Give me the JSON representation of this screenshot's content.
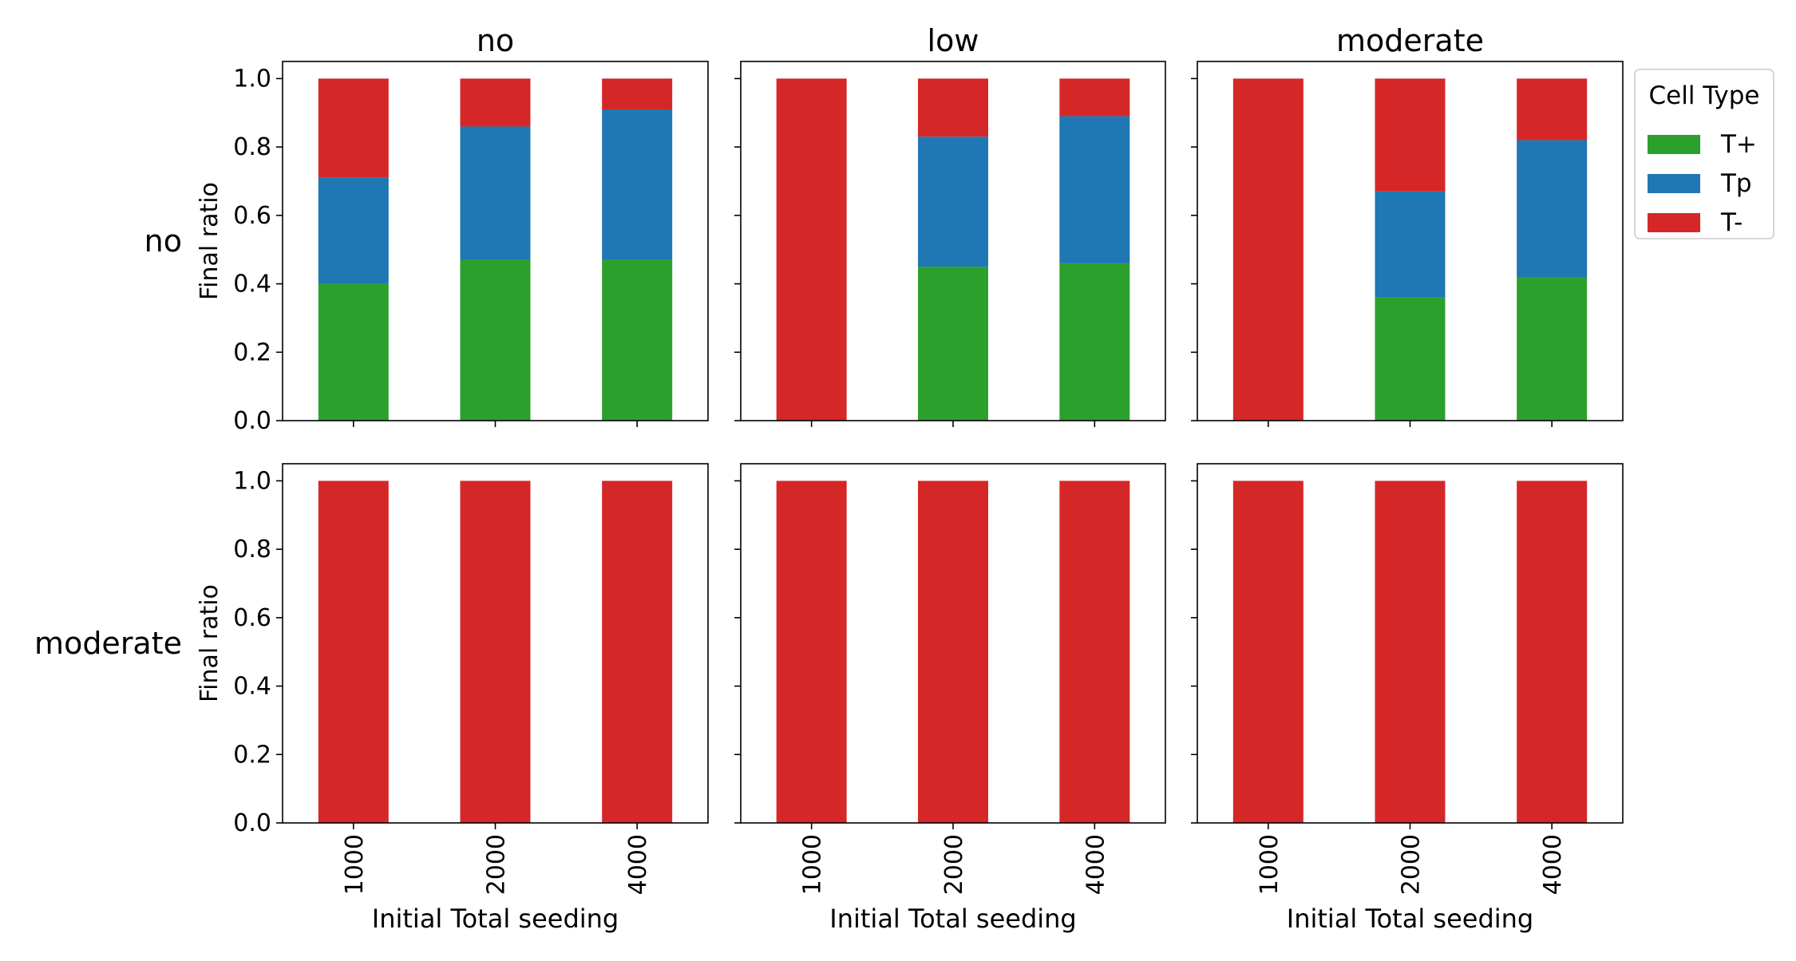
{
  "chart_data": {
    "type": "bar",
    "stacked": true,
    "column_titles": [
      "no",
      "low",
      "moderate"
    ],
    "row_titles": [
      "no",
      "moderate"
    ],
    "xlabel": "Initial Total seeding",
    "ylabel": "Final ratio",
    "categories": [
      "1000",
      "2000",
      "4000"
    ],
    "ylim": [
      0,
      1.05
    ],
    "yticks": [
      "0.0",
      "0.2",
      "0.4",
      "0.6",
      "0.8",
      "1.0"
    ],
    "legend": {
      "title": "Cell Type",
      "position": "right",
      "entries": [
        "T+",
        "Tp",
        "T-"
      ]
    },
    "colors": {
      "T+": "#2ca02c",
      "Tp": "#1f77b4",
      "T-": "#d62728"
    },
    "grid": false,
    "panels": [
      {
        "row": "no",
        "col": "no",
        "series": [
          {
            "name": "T+",
            "values": [
              0.4,
              0.47,
              0.47
            ]
          },
          {
            "name": "Tp",
            "values": [
              0.31,
              0.39,
              0.44
            ]
          },
          {
            "name": "T-",
            "values": [
              0.29,
              0.14,
              0.09
            ]
          }
        ]
      },
      {
        "row": "no",
        "col": "low",
        "series": [
          {
            "name": "T+",
            "values": [
              0.0,
              0.45,
              0.46
            ]
          },
          {
            "name": "Tp",
            "values": [
              0.0,
              0.38,
              0.43
            ]
          },
          {
            "name": "T-",
            "values": [
              1.0,
              0.17,
              0.11
            ]
          }
        ]
      },
      {
        "row": "no",
        "col": "moderate",
        "series": [
          {
            "name": "T+",
            "values": [
              0.0,
              0.36,
              0.42
            ]
          },
          {
            "name": "Tp",
            "values": [
              0.0,
              0.31,
              0.4
            ]
          },
          {
            "name": "T-",
            "values": [
              1.0,
              0.33,
              0.18
            ]
          }
        ]
      },
      {
        "row": "moderate",
        "col": "no",
        "series": [
          {
            "name": "T+",
            "values": [
              0.0,
              0.0,
              0.0
            ]
          },
          {
            "name": "Tp",
            "values": [
              0.0,
              0.0,
              0.0
            ]
          },
          {
            "name": "T-",
            "values": [
              1.0,
              1.0,
              1.0
            ]
          }
        ]
      },
      {
        "row": "moderate",
        "col": "low",
        "series": [
          {
            "name": "T+",
            "values": [
              0.0,
              0.0,
              0.0
            ]
          },
          {
            "name": "Tp",
            "values": [
              0.0,
              0.0,
              0.0
            ]
          },
          {
            "name": "T-",
            "values": [
              1.0,
              1.0,
              1.0
            ]
          }
        ]
      },
      {
        "row": "moderate",
        "col": "moderate",
        "series": [
          {
            "name": "T+",
            "values": [
              0.0,
              0.0,
              0.0
            ]
          },
          {
            "name": "Tp",
            "values": [
              0.0,
              0.0,
              0.0
            ]
          },
          {
            "name": "T-",
            "values": [
              1.0,
              1.0,
              1.0
            ]
          }
        ]
      }
    ]
  }
}
